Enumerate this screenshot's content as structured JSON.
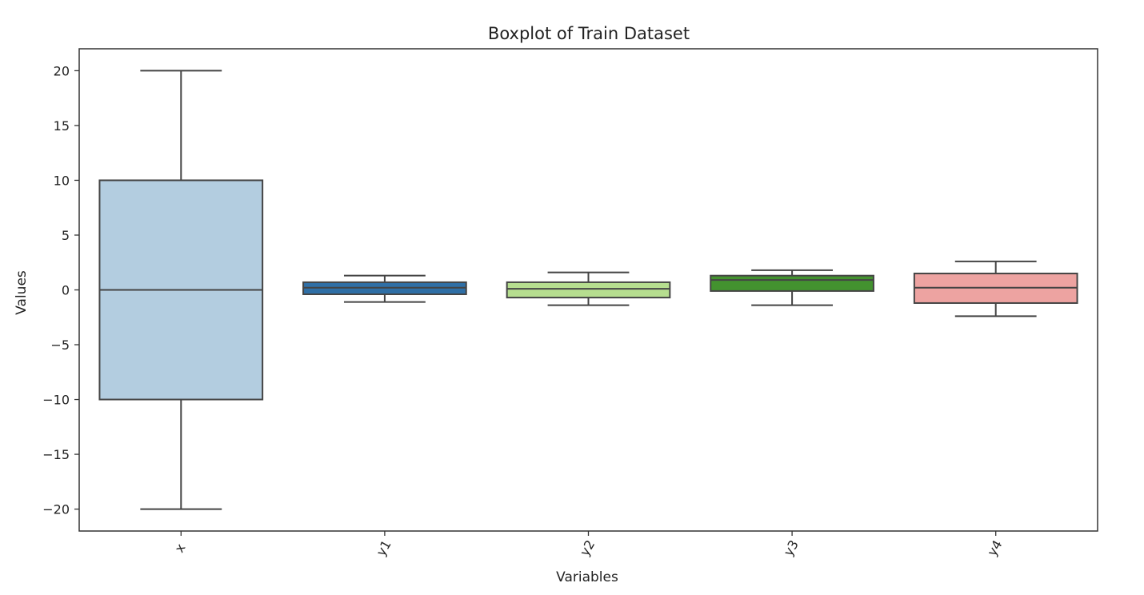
{
  "chart_data": {
    "type": "box",
    "title": "Boxplot of Train Dataset",
    "xlabel": "Variables",
    "ylabel": "Values",
    "ylim": [
      -22,
      22
    ],
    "yticks": [
      20,
      15,
      10,
      5,
      0,
      -5,
      -10,
      -15,
      -20
    ],
    "ytick_labels": [
      "20",
      "15",
      "10",
      "5",
      "0",
      "−5",
      "−10",
      "−15",
      "−20"
    ],
    "grid": false,
    "categories": [
      "x",
      "y1",
      "y2",
      "y3",
      "y4"
    ],
    "boxes": [
      {
        "category": "x",
        "whisker_low": -20.0,
        "q1": -10.0,
        "median": 0.0,
        "q3": 10.0,
        "whisker_high": 20.0,
        "color": "#b3cde0"
      },
      {
        "category": "y1",
        "whisker_low": -1.1,
        "q1": -0.4,
        "median": 0.2,
        "q3": 0.7,
        "whisker_high": 1.3,
        "color": "#2f6fa6"
      },
      {
        "category": "y2",
        "whisker_low": -1.4,
        "q1": -0.7,
        "median": 0.1,
        "q3": 0.7,
        "whisker_high": 1.6,
        "color": "#b6de8f"
      },
      {
        "category": "y3",
        "whisker_low": -1.4,
        "q1": -0.1,
        "median": 0.9,
        "q3": 1.3,
        "whisker_high": 1.8,
        "color": "#43922f"
      },
      {
        "category": "y4",
        "whisker_low": -2.4,
        "q1": -1.2,
        "median": 0.2,
        "q3": 1.5,
        "whisker_high": 2.6,
        "color": "#eda3a1"
      }
    ],
    "line_color": "#444444",
    "frame_color": "#333333"
  }
}
